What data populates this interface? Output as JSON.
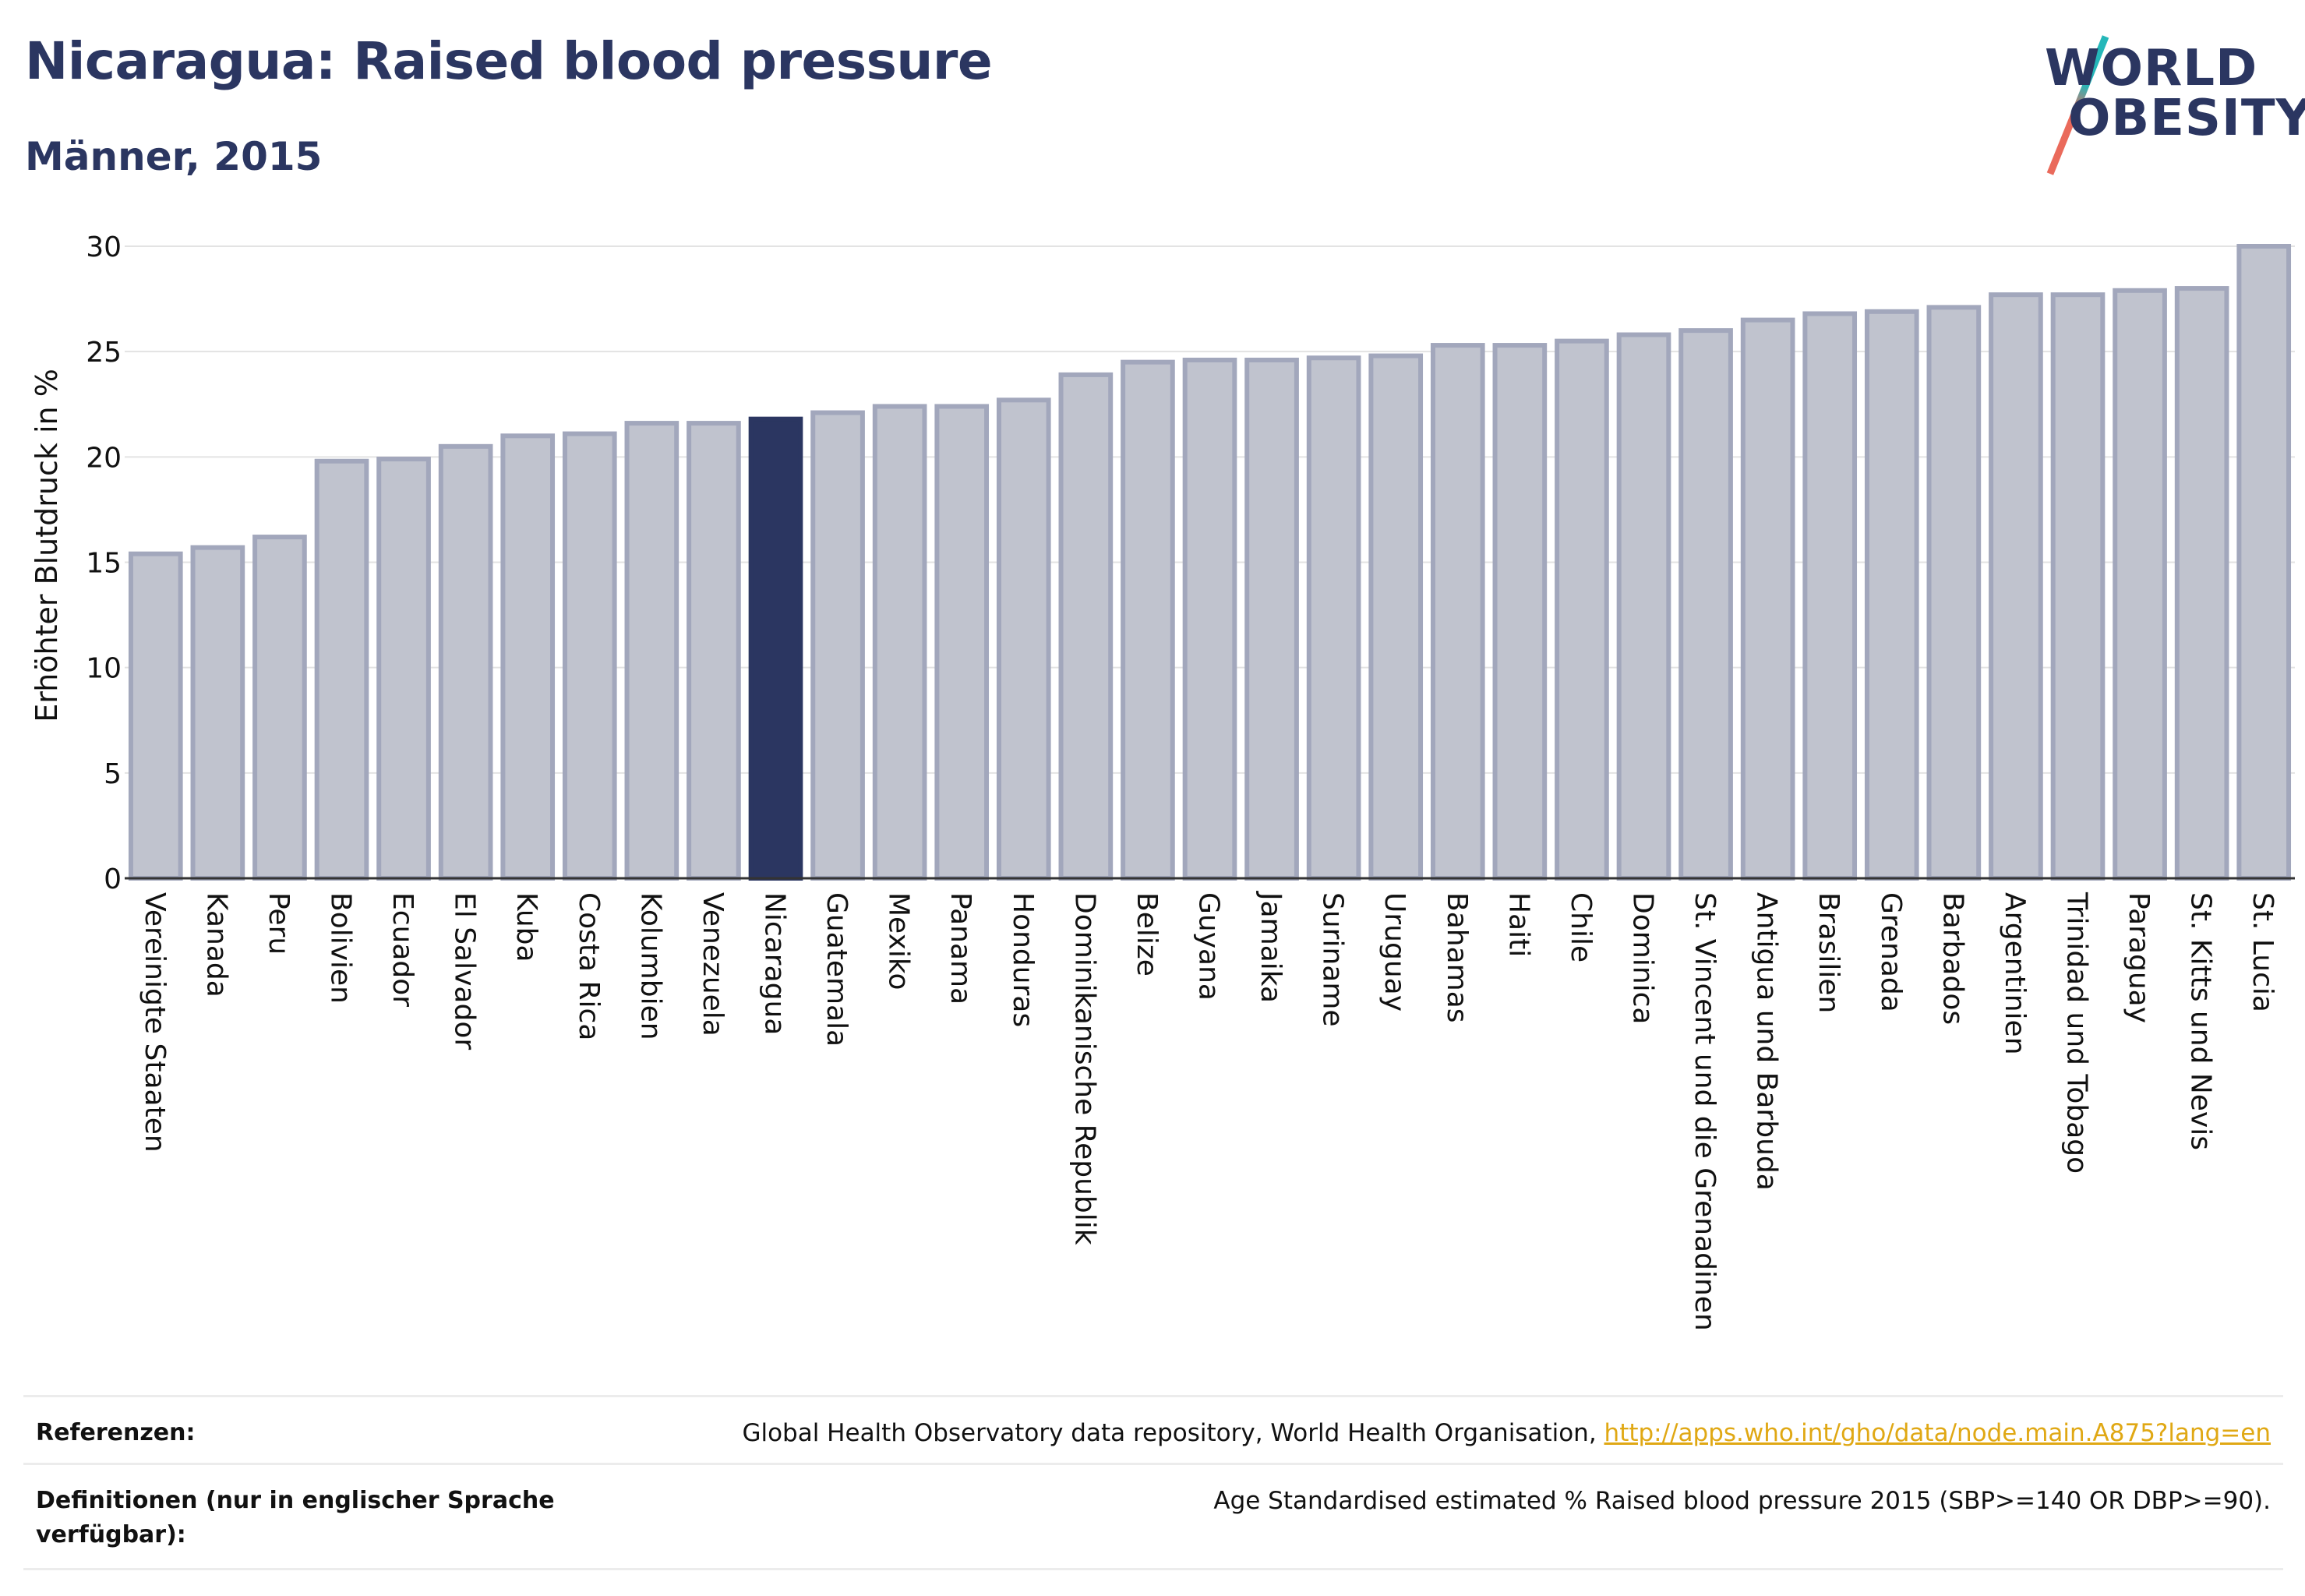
{
  "header": {
    "title": "Nicaragua: Raised blood pressure",
    "subtitle": "Männer, 2015"
  },
  "logo": {
    "line1": "WORLD",
    "line2": "OBESITY",
    "colors": {
      "text": "#2b3661",
      "slash_top": "#25b7b9",
      "slash_bottom": "#ea6a5b"
    }
  },
  "chart_data": {
    "type": "bar",
    "ylabel": "Erhöhter Blutdruck in %",
    "xlabel": "",
    "ylim": [
      0,
      30
    ],
    "yticks": [
      0,
      5,
      10,
      15,
      20,
      25,
      30
    ],
    "grid": true,
    "highlight": "Nicaragua",
    "colors": {
      "bar": "#c0c3ce",
      "bar_border": "#a2a7bc",
      "highlight": "#2b3661",
      "grid": "#e3e3e3"
    },
    "categories": [
      "Vereinigte Staaten",
      "Kanada",
      "Peru",
      "Bolivien",
      "Ecuador",
      "El Salvador",
      "Kuba",
      "Costa Rica",
      "Kolumbien",
      "Venezuela",
      "Nicaragua",
      "Guatemala",
      "Mexiko",
      "Panama",
      "Honduras",
      "Dominikanische Republik",
      "Belize",
      "Guyana",
      "Jamaika",
      "Suriname",
      "Uruguay",
      "Bahamas",
      "Haiti",
      "Chile",
      "Dominica",
      "St. Vincent und die Grenadinen",
      "Antigua und Barbuda",
      "Brasilien",
      "Grenada",
      "Barbados",
      "Argentinien",
      "Trinidad und Tobago",
      "Paraguay",
      "St. Kitts und Nevis",
      "St. Lucia"
    ],
    "values": [
      15.4,
      15.7,
      16.2,
      19.8,
      19.9,
      20.5,
      21.0,
      21.1,
      21.6,
      21.6,
      21.8,
      22.1,
      22.4,
      22.4,
      22.7,
      23.9,
      24.5,
      24.6,
      24.6,
      24.7,
      24.8,
      25.3,
      25.3,
      25.5,
      25.8,
      26.0,
      26.5,
      26.8,
      26.9,
      27.1,
      27.7,
      27.7,
      27.9,
      28.0,
      30.0
    ]
  },
  "references": {
    "ref_label": "Referenzen:",
    "ref_text": "Global Health Observatory data repository, World Health Organisation, ",
    "ref_link": "http://apps.who.int/gho/data/node.main.A875?lang=en",
    "def_label": "Definitionen (nur in englischer Sprache verfügbar):",
    "def_text": "Age Standardised estimated % Raised blood pressure 2015 (SBP>=140 OR DBP>=90)."
  }
}
